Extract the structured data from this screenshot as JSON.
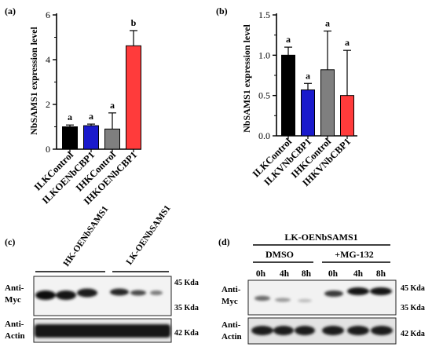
{
  "panel_a": {
    "label": "(a)",
    "ylabel": "NbSAMS1 expression level",
    "chart_data": {
      "type": "bar",
      "categories": [
        "ILKControl",
        "ILKOENbCBP1",
        "IHKControl",
        "IHKOENbCBP1"
      ],
      "values": [
        1.0,
        1.05,
        0.9,
        4.62
      ],
      "errors": [
        0.08,
        0.07,
        0.72,
        0.68
      ],
      "colors": [
        "#000000",
        "#1a1acc",
        "#7f7f7f",
        "#ff3b3b"
      ],
      "letters": [
        "a",
        "a",
        "a",
        "b"
      ],
      "ylim": [
        0,
        6
      ],
      "yticks": [
        "0",
        "2",
        "4",
        "6"
      ]
    }
  },
  "panel_b": {
    "label": "(b)",
    "ylabel": "NbSAMS1 expression level",
    "chart_data": {
      "type": "bar",
      "categories": [
        "ILKControl",
        "ILKVNbCBP1",
        "IHKControl",
        "IHKVNbCBP1"
      ],
      "values": [
        1.0,
        0.57,
        0.82,
        0.5
      ],
      "errors": [
        0.1,
        0.08,
        0.48,
        0.56
      ],
      "colors": [
        "#000000",
        "#1a1acc",
        "#7f7f7f",
        "#ff3b3b"
      ],
      "letters": [
        "a",
        "a",
        "a",
        "a"
      ],
      "ylim": [
        0,
        1.5
      ],
      "yticks": [
        "0.0",
        "0.5",
        "1.0",
        "1.5"
      ]
    }
  },
  "panel_c": {
    "label": "(c)",
    "group1": "HK-OENbSAMS1",
    "group2": "LK-OENbSAMS1",
    "row1_label_1": "Anti-",
    "row1_label_2": "Myc",
    "row2_label_1": "Anti-",
    "row2_label_2": "Actin",
    "marker_45": "45 Kda",
    "marker_35": "35 Kda",
    "marker_42": "42 Kda"
  },
  "panel_d": {
    "label": "(d)",
    "title": "LK-OENbSAMS1",
    "cond1": "DMSO",
    "cond2": "+MG-132",
    "times": [
      "0h",
      "4h",
      "8h",
      "0h",
      "4h",
      "8h"
    ],
    "row1_label_1": "Anti-",
    "row1_label_2": "Myc",
    "row2_label_1": "Anti-",
    "row2_label_2": "Actin",
    "marker_45": "45 Kda",
    "marker_35": "35 Kda",
    "marker_42": "42 Kda"
  }
}
